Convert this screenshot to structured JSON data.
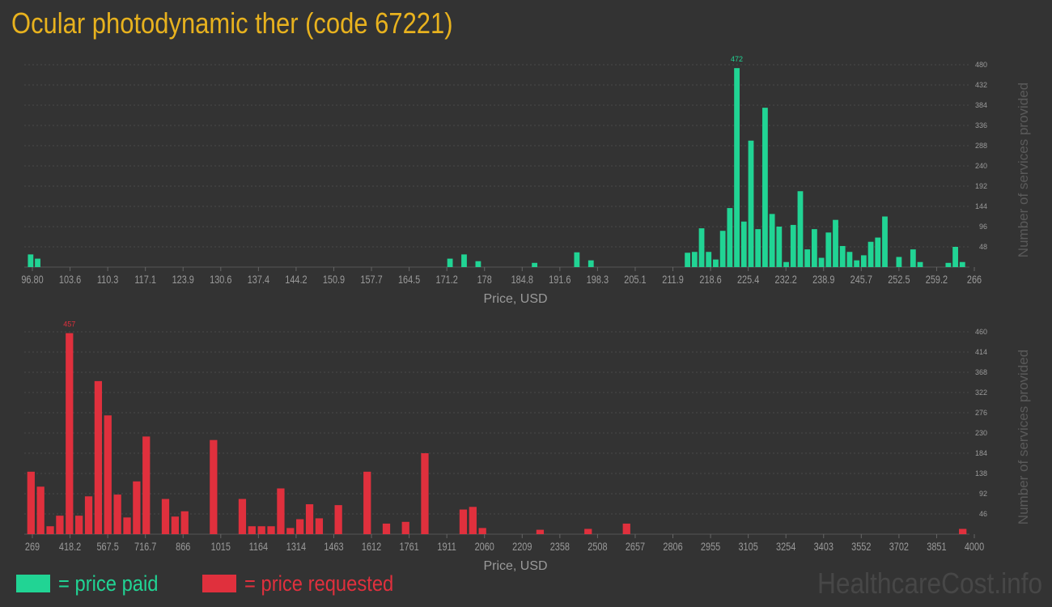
{
  "title": "Ocular photodynamic ther (code 67221)",
  "colors": {
    "background": "#333333",
    "title": "#e8b21e",
    "paid": "#21d494",
    "requested": "#e0303d",
    "axis_text": "#9a9a9a",
    "grid": "#4a4a4a",
    "watermark": "#474747"
  },
  "legend": {
    "paid_label": "= price paid",
    "requested_label": "= price requested"
  },
  "watermark": "HealthcareCost.info",
  "chart_data": [
    {
      "type": "bar",
      "name": "price paid",
      "xlabel": "Price, USD",
      "ylabel": "Number of services provided",
      "x_ticks": [
        "96.80",
        "103.6",
        "110.3",
        "117.1",
        "123.9",
        "130.6",
        "137.4",
        "144.2",
        "150.9",
        "157.7",
        "164.5",
        "171.2",
        "178",
        "184.8",
        "191.6",
        "198.3",
        "205.1",
        "211.9",
        "218.6",
        "225.4",
        "232.2",
        "238.9",
        "245.7",
        "252.5",
        "259.2",
        "266"
      ],
      "y_ticks": [
        48,
        96,
        144,
        192,
        240,
        288,
        336,
        384,
        432,
        480
      ],
      "ylim": [
        0,
        480
      ],
      "peak_label": "472",
      "values": [
        30,
        20,
        0,
        0,
        0,
        0,
        0,
        0,
        0,
        0,
        0,
        0,
        0,
        0,
        0,
        0,
        0,
        0,
        0,
        0,
        0,
        0,
        0,
        0,
        0,
        0,
        0,
        0,
        0,
        0,
        0,
        0,
        0,
        0,
        0,
        0,
        0,
        0,
        0,
        0,
        0,
        0,
        0,
        0,
        0,
        0,
        0,
        0,
        0,
        0,
        0,
        0,
        0,
        0,
        0,
        0,
        0,
        0,
        0,
        0,
        0,
        0,
        0,
        0,
        0,
        0,
        0,
        0,
        0,
        0,
        0,
        0,
        0,
        0,
        0,
        0,
        0,
        0,
        0,
        0,
        0,
        0,
        0,
        0,
        0,
        0,
        0,
        0,
        0,
        0,
        0,
        0,
        0,
        0,
        0,
        0,
        0,
        0,
        0,
        0,
        0,
        0,
        0,
        0,
        0,
        0,
        0,
        0,
        0,
        0,
        0,
        0,
        0,
        0,
        0,
        0,
        0,
        0,
        0,
        0,
        0,
        0,
        0,
        0,
        0,
        0,
        0,
        0,
        0,
        0,
        0,
        0,
        0,
        0,
        0,
        0,
        0,
        0,
        0,
        0,
        0,
        0,
        0,
        0,
        0,
        0,
        0,
        0,
        0,
        0,
        0,
        0,
        0,
        0,
        0,
        0,
        0,
        0,
        0,
        0,
        0,
        0,
        0,
        0,
        0,
        0,
        0,
        0,
        0,
        0,
        0,
        0,
        0,
        0,
        0,
        0,
        0,
        0,
        0,
        0,
        0,
        0,
        0,
        0,
        0,
        0,
        0,
        0,
        0,
        0,
        0,
        0,
        0,
        0,
        0,
        0,
        0,
        0,
        0,
        0
      ],
      "bars": [
        {
          "x": 97.2,
          "v": 30
        },
        {
          "x": 98.2,
          "v": 20
        },
        {
          "x": 156.7,
          "v": 20
        },
        {
          "x": 158.7,
          "v": 30
        },
        {
          "x": 160.7,
          "v": 14
        },
        {
          "x": 168.7,
          "v": 10
        },
        {
          "x": 174.7,
          "v": 35
        },
        {
          "x": 176.7,
          "v": 16
        },
        {
          "x": 190.4,
          "v": 34
        },
        {
          "x": 191.4,
          "v": 36
        },
        {
          "x": 192.4,
          "v": 92
        },
        {
          "x": 193.4,
          "v": 36
        },
        {
          "x": 194.4,
          "v": 18
        },
        {
          "x": 195.4,
          "v": 86
        },
        {
          "x": 196.4,
          "v": 140
        },
        {
          "x": 197.4,
          "v": 472
        },
        {
          "x": 198.4,
          "v": 108
        },
        {
          "x": 199.4,
          "v": 300
        },
        {
          "x": 200.4,
          "v": 90
        },
        {
          "x": 201.4,
          "v": 378
        },
        {
          "x": 202.4,
          "v": 126
        },
        {
          "x": 203.4,
          "v": 96
        },
        {
          "x": 204.4,
          "v": 12
        },
        {
          "x": 205.4,
          "v": 100
        },
        {
          "x": 206.4,
          "v": 180
        },
        {
          "x": 207.4,
          "v": 42
        },
        {
          "x": 208.4,
          "v": 90
        },
        {
          "x": 209.4,
          "v": 22
        },
        {
          "x": 210.4,
          "v": 82
        },
        {
          "x": 211.4,
          "v": 112
        },
        {
          "x": 212.4,
          "v": 50
        },
        {
          "x": 213.4,
          "v": 36
        },
        {
          "x": 214.4,
          "v": 16
        },
        {
          "x": 215.4,
          "v": 28
        },
        {
          "x": 216.4,
          "v": 60
        },
        {
          "x": 217.4,
          "v": 70
        },
        {
          "x": 218.4,
          "v": 120
        },
        {
          "x": 220.4,
          "v": 24
        },
        {
          "x": 222.4,
          "v": 42
        },
        {
          "x": 223.4,
          "v": 12
        },
        {
          "x": 227.4,
          "v": 10
        },
        {
          "x": 228.4,
          "v": 48
        },
        {
          "x": 229.4,
          "v": 12
        }
      ]
    },
    {
      "type": "bar",
      "name": "price requested",
      "xlabel": "Price, USD",
      "ylabel": "Number of services provided",
      "x_ticks": [
        "269",
        "418.2",
        "567.5",
        "716.7",
        "866",
        "1015",
        "1164",
        "1314",
        "1463",
        "1612",
        "1761",
        "1911",
        "2060",
        "2209",
        "2358",
        "2508",
        "2657",
        "2806",
        "2955",
        "3105",
        "3254",
        "3403",
        "3552",
        "3702",
        "3851",
        "4000"
      ],
      "y_ticks": [
        46,
        92,
        138,
        184,
        230,
        276,
        322,
        368,
        414,
        460
      ],
      "ylim": [
        0,
        460
      ],
      "peak_label": "457",
      "bars": [
        {
          "x": 1,
          "v": 142
        },
        {
          "x": 2,
          "v": 108
        },
        {
          "x": 3,
          "v": 18
        },
        {
          "x": 4,
          "v": 42
        },
        {
          "x": 5,
          "v": 457
        },
        {
          "x": 6,
          "v": 42
        },
        {
          "x": 7,
          "v": 86
        },
        {
          "x": 8,
          "v": 348
        },
        {
          "x": 9,
          "v": 270
        },
        {
          "x": 10,
          "v": 90
        },
        {
          "x": 11,
          "v": 38
        },
        {
          "x": 12,
          "v": 120
        },
        {
          "x": 13,
          "v": 222
        },
        {
          "x": 15,
          "v": 80
        },
        {
          "x": 16,
          "v": 40
        },
        {
          "x": 17,
          "v": 52
        },
        {
          "x": 20,
          "v": 214
        },
        {
          "x": 23,
          "v": 80
        },
        {
          "x": 24,
          "v": 18
        },
        {
          "x": 25,
          "v": 18
        },
        {
          "x": 26,
          "v": 18
        },
        {
          "x": 27,
          "v": 104
        },
        {
          "x": 28,
          "v": 14
        },
        {
          "x": 29,
          "v": 34
        },
        {
          "x": 30,
          "v": 68
        },
        {
          "x": 31,
          "v": 36
        },
        {
          "x": 33,
          "v": 66
        },
        {
          "x": 36,
          "v": 142
        },
        {
          "x": 38,
          "v": 24
        },
        {
          "x": 40,
          "v": 28
        },
        {
          "x": 42,
          "v": 184
        },
        {
          "x": 46,
          "v": 56
        },
        {
          "x": 47,
          "v": 62
        },
        {
          "x": 48,
          "v": 14
        },
        {
          "x": 54,
          "v": 10
        },
        {
          "x": 59,
          "v": 12
        },
        {
          "x": 63,
          "v": 24
        },
        {
          "x": 98,
          "v": 12
        }
      ]
    }
  ]
}
